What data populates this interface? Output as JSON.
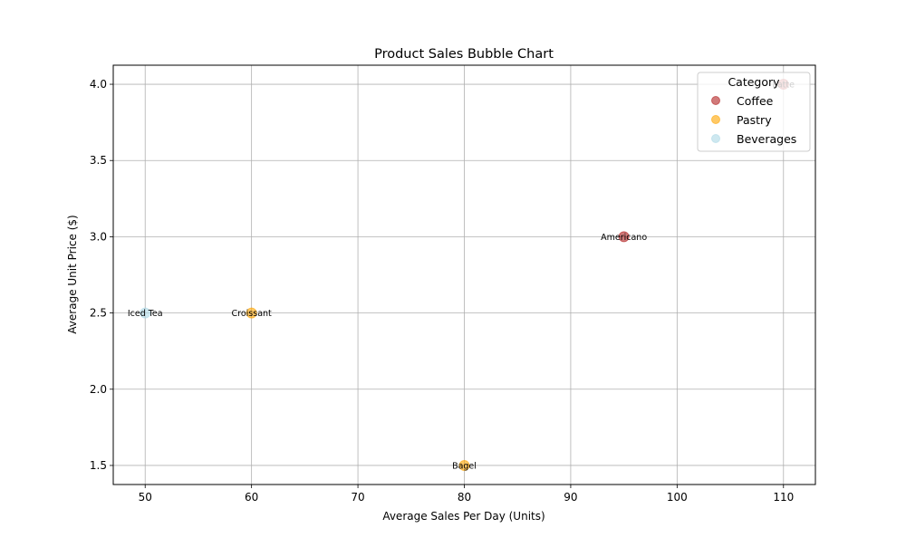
{
  "chart_data": {
    "type": "scatter",
    "title": "Product Sales Bubble Chart",
    "xlabel": "Average Sales Per Day (Units)",
    "ylabel": "Average Unit Price ($)",
    "xlim": [
      47,
      113
    ],
    "ylim": [
      1.375,
      4.125
    ],
    "x_ticks": [
      50,
      60,
      70,
      80,
      90,
      100,
      110
    ],
    "y_ticks": [
      1.5,
      2.0,
      2.5,
      3.0,
      3.5,
      4.0
    ],
    "x_tick_labels": [
      "50",
      "60",
      "70",
      "80",
      "90",
      "100",
      "110"
    ],
    "y_tick_labels": [
      "1.5",
      "2.0",
      "2.5",
      "3.0",
      "3.5",
      "4.0"
    ],
    "grid": true,
    "legend": {
      "title": "Category",
      "placement": "top-right",
      "entries": [
        {
          "label": "Coffee",
          "color": "#b22222"
        },
        {
          "label": "Pastry",
          "color": "#ffa500"
        },
        {
          "label": "Beverages",
          "color": "#add8e6"
        }
      ]
    },
    "series": [
      {
        "name": "Coffee",
        "color": "#b22222",
        "points": [
          {
            "label": "Americano",
            "x": 95,
            "y": 3.0
          },
          {
            "label": "Latte",
            "x": 110,
            "y": 4.0
          }
        ]
      },
      {
        "name": "Pastry",
        "color": "#ffa500",
        "points": [
          {
            "label": "Croissant",
            "x": 60,
            "y": 2.5
          },
          {
            "label": "Bagel",
            "x": 80,
            "y": 1.5
          }
        ]
      },
      {
        "name": "Beverages",
        "color": "#add8e6",
        "points": [
          {
            "label": "Iced Tea",
            "x": 50,
            "y": 2.5
          }
        ]
      }
    ]
  }
}
